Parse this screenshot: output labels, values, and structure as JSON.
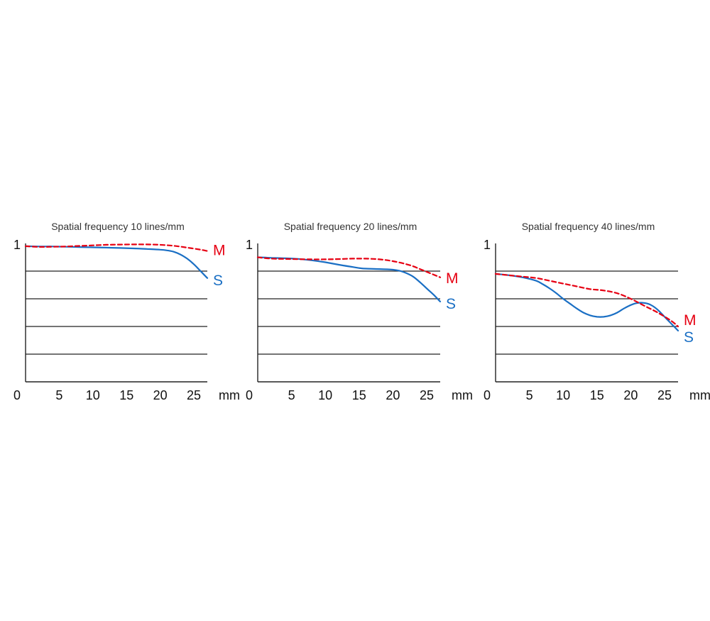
{
  "chart_data": [
    {
      "type": "line",
      "title": "Spatial frequency 10 lines/mm",
      "xlabel": "mm",
      "ylabel": "",
      "xlim": [
        0,
        27
      ],
      "ylim": [
        0,
        1
      ],
      "y_tick_labels": [
        "1"
      ],
      "x_tick_labels": [
        "0",
        "5",
        "10",
        "15",
        "20",
        "25"
      ],
      "x_ticks": [
        0,
        5,
        10,
        15,
        20,
        25
      ],
      "gridlines_y": [
        0.2,
        0.4,
        0.6,
        0.8
      ],
      "series": [
        {
          "name": "M",
          "style": "dashed",
          "color": "#e60012",
          "x": [
            0,
            2,
            4,
            6,
            8,
            10,
            12,
            14,
            16,
            18,
            20,
            22,
            24,
            26,
            27
          ],
          "y": [
            0.98,
            0.975,
            0.976,
            0.978,
            0.982,
            0.986,
            0.99,
            0.992,
            0.993,
            0.993,
            0.99,
            0.983,
            0.97,
            0.955,
            0.945
          ]
        },
        {
          "name": "S",
          "style": "solid",
          "color": "#1a6fc4",
          "x": [
            0,
            2,
            4,
            6,
            8,
            10,
            12,
            14,
            16,
            18,
            20,
            21,
            22,
            23,
            24,
            25,
            26,
            27
          ],
          "y": [
            0.98,
            0.978,
            0.978,
            0.976,
            0.974,
            0.972,
            0.97,
            0.967,
            0.964,
            0.96,
            0.955,
            0.95,
            0.94,
            0.92,
            0.89,
            0.85,
            0.8,
            0.75
          ]
        }
      ]
    },
    {
      "type": "line",
      "title": "Spatial frequency 20 lines/mm",
      "xlabel": "mm",
      "ylabel": "",
      "xlim": [
        0,
        27
      ],
      "ylim": [
        0,
        1
      ],
      "y_tick_labels": [
        "1"
      ],
      "x_tick_labels": [
        "0",
        "5",
        "10",
        "15",
        "20",
        "25"
      ],
      "x_ticks": [
        0,
        5,
        10,
        15,
        20,
        25
      ],
      "gridlines_y": [
        0.2,
        0.4,
        0.6,
        0.8
      ],
      "series": [
        {
          "name": "M",
          "style": "dashed",
          "color": "#e60012",
          "x": [
            0,
            2,
            4,
            6,
            8,
            10,
            12,
            14,
            16,
            18,
            20,
            22,
            23,
            24,
            25,
            26,
            27
          ],
          "y": [
            0.9,
            0.89,
            0.888,
            0.886,
            0.885,
            0.885,
            0.887,
            0.89,
            0.89,
            0.885,
            0.872,
            0.85,
            0.835,
            0.815,
            0.795,
            0.775,
            0.755
          ]
        },
        {
          "name": "S",
          "style": "solid",
          "color": "#1a6fc4",
          "x": [
            0,
            2,
            4,
            6,
            8,
            10,
            12,
            14,
            15,
            16,
            18,
            20,
            21,
            22,
            23,
            24,
            25,
            26,
            27
          ],
          "y": [
            0.9,
            0.896,
            0.893,
            0.888,
            0.878,
            0.864,
            0.846,
            0.83,
            0.822,
            0.818,
            0.815,
            0.81,
            0.802,
            0.785,
            0.76,
            0.72,
            0.675,
            0.63,
            0.58
          ]
        }
      ]
    },
    {
      "type": "line",
      "title": "Spatial frequency 40 lines/mm",
      "xlabel": "mm",
      "ylabel": "",
      "xlim": [
        0,
        27
      ],
      "ylim": [
        0,
        1
      ],
      "y_tick_labels": [
        "1"
      ],
      "x_tick_labels": [
        "0",
        "5",
        "10",
        "15",
        "20",
        "25"
      ],
      "x_ticks": [
        0,
        5,
        10,
        15,
        20,
        25
      ],
      "gridlines_y": [
        0.2,
        0.4,
        0.6,
        0.8
      ],
      "series": [
        {
          "name": "M",
          "style": "dashed",
          "color": "#e60012",
          "x": [
            0,
            2,
            4,
            6,
            8,
            10,
            12,
            14,
            16,
            18,
            20,
            22,
            24,
            26,
            27
          ],
          "y": [
            0.78,
            0.77,
            0.76,
            0.75,
            0.73,
            0.71,
            0.69,
            0.67,
            0.66,
            0.64,
            0.6,
            0.55,
            0.5,
            0.44,
            0.4
          ]
        },
        {
          "name": "S",
          "style": "solid",
          "color": "#1a6fc4",
          "x": [
            0,
            2,
            4,
            6,
            7,
            8,
            9,
            10,
            11,
            12,
            13,
            14,
            15,
            16,
            17,
            18,
            19,
            20,
            21,
            22,
            23,
            24,
            25,
            26,
            27
          ],
          "y": [
            0.78,
            0.77,
            0.755,
            0.73,
            0.705,
            0.675,
            0.64,
            0.6,
            0.565,
            0.53,
            0.5,
            0.48,
            0.47,
            0.47,
            0.48,
            0.5,
            0.53,
            0.555,
            0.57,
            0.57,
            0.555,
            0.52,
            0.47,
            0.42,
            0.37
          ]
        }
      ]
    }
  ]
}
